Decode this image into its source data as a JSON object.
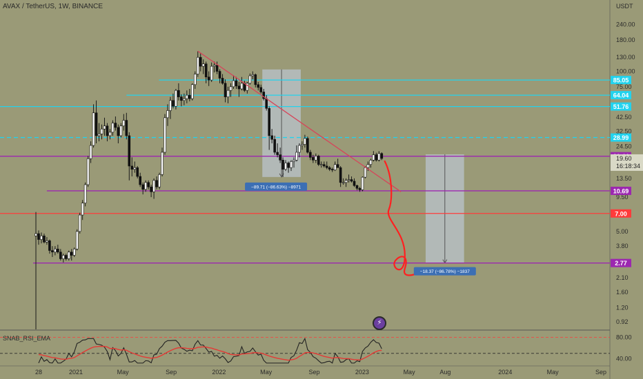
{
  "header": {
    "title": "AVAX / TetherUS, 1W, BINANCE",
    "currency": "USDT",
    "oscillator": "SNAB_RSI_EMA"
  },
  "colors": {
    "background": "#9a9a77",
    "cyan": "#22d3ee",
    "purple": "#9c27b0",
    "red": "#ff3b3b",
    "trendline": "#d6455a",
    "down_box": "#b9c3cc",
    "tag_blue": "#3c6fb4"
  },
  "chart_data": {
    "type": "candlestick",
    "title": "AVAX / TetherUS, 1W, BINANCE",
    "y_scale": "log",
    "ylim": [
      0.8,
      380
    ],
    "y_ticks": [
      240,
      180,
      130,
      100,
      75,
      42.5,
      32.5,
      24.5,
      13.5,
      9.5,
      5.0,
      3.8,
      2.1,
      1.6,
      1.2,
      0.92
    ],
    "y_tick_labels": [
      "240.00",
      "180.00",
      "130.00",
      "100.00",
      "75.00",
      "42.50",
      "32.50",
      "24.50",
      "13.50",
      "9.50",
      "5.00",
      "3.80",
      "2.10",
      "1.60",
      "1.20",
      "0.92"
    ],
    "x_ticks": [
      "28",
      "2021",
      "May",
      "Sep",
      "2022",
      "May",
      "Sep",
      "2023",
      "May",
      "Aug",
      "2024",
      "May",
      "Sep"
    ],
    "x_tick_dates": [
      "2020-09-28",
      "2021-01-01",
      "2021-05-01",
      "2021-09-01",
      "2022-01-01",
      "2022-05-01",
      "2022-09-01",
      "2023-01-01",
      "2023-05-01",
      "2023-08-01",
      "2024-01-01",
      "2024-05-01",
      "2024-09-01"
    ],
    "horizontal_levels": [
      {
        "value": 85.05,
        "label": "85.05",
        "color": "#22d3ee",
        "style": "solid"
      },
      {
        "value": 64.04,
        "label": "64.04",
        "color": "#22d3ee",
        "style": "solid"
      },
      {
        "value": 51.76,
        "label": "51.76",
        "color": "#22d3ee",
        "style": "solid"
      },
      {
        "value": 28.99,
        "label": "28.99",
        "color": "#22d3ee",
        "style": "dashed"
      },
      {
        "value": 20.44,
        "label": "20.44",
        "color": "#9c27b0",
        "style": "solid"
      },
      {
        "value": 10.69,
        "label": "10.69",
        "color": "#9c27b0",
        "style": "solid"
      },
      {
        "value": 7.0,
        "label": "7.00",
        "color": "#ff3b3b",
        "style": "solid"
      },
      {
        "value": 2.77,
        "label": "2.77",
        "color": "#9c27b0",
        "style": "solid"
      }
    ],
    "current_price": {
      "value": 19.6,
      "label": "19.60",
      "countdown": "16:18:34"
    },
    "measurements": [
      {
        "label": "−89.71 (−86.63%) −8971",
        "from": 103.6,
        "to": 13.85
      },
      {
        "label": "−18.37 (−86.78%) −1837",
        "from": 21.15,
        "to": 2.77
      }
    ],
    "trendline": {
      "start": {
        "date": "2021-11-08",
        "value": 146
      },
      "end": {
        "date": "2023-04-10",
        "value": 10.5
      }
    },
    "candles": [
      [
        "2020-09-21",
        4.6,
        7.2,
        0.8,
        4.8
      ],
      [
        "2020-09-28",
        4.8,
        5.1,
        3.9,
        4.3
      ],
      [
        "2020-10-05",
        4.3,
        4.9,
        4.0,
        4.6
      ],
      [
        "2020-10-12",
        4.6,
        4.8,
        4.0,
        4.1
      ],
      [
        "2020-10-19",
        4.1,
        4.5,
        3.9,
        4.2
      ],
      [
        "2020-10-26",
        4.2,
        4.3,
        3.3,
        3.5
      ],
      [
        "2020-11-02",
        3.5,
        3.8,
        3.1,
        3.4
      ],
      [
        "2020-11-09",
        3.4,
        3.8,
        3.2,
        3.6
      ],
      [
        "2020-11-16",
        3.6,
        3.9,
        3.3,
        3.4
      ],
      [
        "2020-11-23",
        3.4,
        3.6,
        2.9,
        3.0
      ],
      [
        "2020-11-30",
        3.0,
        3.3,
        2.8,
        3.2
      ],
      [
        "2020-12-07",
        3.2,
        3.3,
        2.9,
        3.0
      ],
      [
        "2020-12-14",
        3.0,
        3.5,
        2.9,
        3.4
      ],
      [
        "2020-12-21",
        3.4,
        3.6,
        2.9,
        3.2
      ],
      [
        "2020-12-28",
        3.2,
        3.7,
        3.1,
        3.6
      ],
      [
        "2021-01-04",
        3.6,
        5.2,
        3.5,
        5.0
      ],
      [
        "2021-01-11",
        5.0,
        7.1,
        4.8,
        6.8
      ],
      [
        "2021-01-18",
        6.8,
        9.0,
        6.2,
        8.5
      ],
      [
        "2021-01-25",
        8.5,
        12.5,
        8.0,
        12.0
      ],
      [
        "2021-02-01",
        12.0,
        20.5,
        11.5,
        19.5
      ],
      [
        "2021-02-08",
        19.5,
        27.0,
        18.0,
        25.0
      ],
      [
        "2021-02-15",
        25.0,
        54.0,
        24.0,
        46.0
      ],
      [
        "2021-02-22",
        46.0,
        58.0,
        26.0,
        30.0
      ],
      [
        "2021-03-01",
        30.0,
        38.0,
        27.0,
        31.0
      ],
      [
        "2021-03-08",
        31.0,
        37.0,
        28.0,
        34.0
      ],
      [
        "2021-03-15",
        34.0,
        42.0,
        30.0,
        36.0
      ],
      [
        "2021-03-22",
        36.0,
        38.0,
        27.0,
        30.0
      ],
      [
        "2021-03-29",
        30.0,
        34.0,
        28.0,
        32.0
      ],
      [
        "2021-04-05",
        32.0,
        40.0,
        30.0,
        38.0
      ],
      [
        "2021-04-12",
        38.0,
        43.0,
        33.0,
        35.0
      ],
      [
        "2021-04-19",
        35.0,
        37.0,
        26.0,
        30.0
      ],
      [
        "2021-04-26",
        30.0,
        38.0,
        29.0,
        36.0
      ],
      [
        "2021-05-03",
        36.0,
        45.0,
        33.0,
        40.0
      ],
      [
        "2021-05-10",
        40.0,
        46.0,
        28.0,
        30.0
      ],
      [
        "2021-05-17",
        30.0,
        32.0,
        13.0,
        17.0
      ],
      [
        "2021-05-24",
        17.0,
        20.0,
        14.0,
        16.0
      ],
      [
        "2021-05-31",
        16.0,
        18.5,
        15.0,
        16.5
      ],
      [
        "2021-06-07",
        16.5,
        17.0,
        13.5,
        14.0
      ],
      [
        "2021-06-14",
        14.0,
        15.0,
        11.5,
        12.0
      ],
      [
        "2021-06-21",
        12.0,
        12.5,
        10.0,
        11.0
      ],
      [
        "2021-06-28",
        11.0,
        13.0,
        10.5,
        12.5
      ],
      [
        "2021-07-05",
        12.5,
        13.0,
        11.0,
        11.5
      ],
      [
        "2021-07-12",
        11.5,
        12.0,
        9.5,
        10.5
      ],
      [
        "2021-07-19",
        10.5,
        13.5,
        9.2,
        13.0
      ],
      [
        "2021-07-26",
        13.0,
        14.0,
        11.0,
        11.5
      ],
      [
        "2021-08-02",
        11.5,
        15.0,
        11.0,
        14.5
      ],
      [
        "2021-08-09",
        14.5,
        24.0,
        14.0,
        22.0
      ],
      [
        "2021-08-16",
        22.0,
        45.0,
        21.0,
        42.0
      ],
      [
        "2021-08-23",
        42.0,
        54.0,
        36.0,
        48.0
      ],
      [
        "2021-08-30",
        48.0,
        62.0,
        41.0,
        58.0
      ],
      [
        "2021-09-06",
        58.0,
        66.0,
        50.0,
        52.0
      ],
      [
        "2021-09-13",
        52.0,
        72.0,
        49.0,
        70.0
      ],
      [
        "2021-09-20",
        70.0,
        80.0,
        58.0,
        62.0
      ],
      [
        "2021-09-27",
        62.0,
        65.0,
        52.0,
        58.0
      ],
      [
        "2021-10-04",
        58.0,
        66.0,
        53.0,
        60.0
      ],
      [
        "2021-10-11",
        60.0,
        70.0,
        55.0,
        64.0
      ],
      [
        "2021-10-18",
        64.0,
        72.0,
        57.0,
        60.0
      ],
      [
        "2021-10-25",
        60.0,
        80.0,
        58.0,
        78.0
      ],
      [
        "2021-11-01",
        78.0,
        100.0,
        72.0,
        95.0
      ],
      [
        "2021-11-08",
        95.0,
        146.0,
        90.0,
        130.0
      ],
      [
        "2021-11-15",
        130.0,
        140.0,
        100.0,
        110.0
      ],
      [
        "2021-11-22",
        110.0,
        125.0,
        95.0,
        115.0
      ],
      [
        "2021-11-29",
        115.0,
        120.0,
        80.0,
        90.0
      ],
      [
        "2021-12-06",
        90.0,
        100.0,
        76.0,
        85.0
      ],
      [
        "2021-12-13",
        85.0,
        118.0,
        82.0,
        110.0
      ],
      [
        "2021-12-20",
        110.0,
        120.0,
        98.0,
        112.0
      ],
      [
        "2021-12-27",
        112.0,
        120.0,
        95.0,
        100.0
      ],
      [
        "2022-01-03",
        100.0,
        104.0,
        80.0,
        88.0
      ],
      [
        "2022-01-10",
        88.0,
        95.0,
        78.0,
        80.0
      ],
      [
        "2022-01-17",
        80.0,
        86.0,
        56.0,
        62.0
      ],
      [
        "2022-01-24",
        62.0,
        75.0,
        55.0,
        70.0
      ],
      [
        "2022-01-31",
        70.0,
        80.0,
        62.0,
        75.0
      ],
      [
        "2022-02-07",
        75.0,
        93.0,
        72.0,
        84.0
      ],
      [
        "2022-02-14",
        84.0,
        90.0,
        72.0,
        76.0
      ],
      [
        "2022-02-21",
        76.0,
        82.0,
        62.0,
        72.0
      ],
      [
        "2022-02-28",
        72.0,
        90.0,
        70.0,
        80.0
      ],
      [
        "2022-03-07",
        80.0,
        84.0,
        68.0,
        70.0
      ],
      [
        "2022-03-14",
        70.0,
        82.0,
        66.0,
        80.0
      ],
      [
        "2022-03-21",
        80.0,
        96.0,
        78.0,
        92.0
      ],
      [
        "2022-03-28",
        92.0,
        100.0,
        86.0,
        94.0
      ],
      [
        "2022-04-04",
        94.0,
        96.0,
        74.0,
        78.0
      ],
      [
        "2022-04-11",
        78.0,
        82.0,
        70.0,
        74.0
      ],
      [
        "2022-04-18",
        74.0,
        78.0,
        66.0,
        68.0
      ],
      [
        "2022-04-25",
        68.0,
        72.0,
        58.0,
        60.0
      ],
      [
        "2022-05-02",
        60.0,
        64.0,
        48.0,
        50.0
      ],
      [
        "2022-05-09",
        50.0,
        52.0,
        23.0,
        30.0
      ],
      [
        "2022-05-16",
        30.0,
        34.0,
        26.0,
        28.0
      ],
      [
        "2022-05-23",
        28.0,
        30.0,
        21.0,
        22.0
      ],
      [
        "2022-05-30",
        22.0,
        26.0,
        20.0,
        21.0
      ],
      [
        "2022-06-06",
        21.0,
        24.0,
        18.0,
        19.0
      ],
      [
        "2022-06-13",
        19.0,
        20.0,
        13.85,
        16.0
      ],
      [
        "2022-06-20",
        16.0,
        19.0,
        15.5,
        18.0
      ],
      [
        "2022-06-27",
        18.0,
        18.5,
        15.0,
        16.5
      ],
      [
        "2022-07-04",
        16.5,
        19.0,
        15.5,
        18.5
      ],
      [
        "2022-07-11",
        18.5,
        20.0,
        16.5,
        19.0
      ],
      [
        "2022-07-18",
        19.0,
        25.0,
        18.5,
        22.0
      ],
      [
        "2022-07-25",
        22.0,
        26.0,
        20.0,
        25.0
      ],
      [
        "2022-08-01",
        25.0,
        27.0,
        23.0,
        25.5
      ],
      [
        "2022-08-08",
        25.5,
        30.5,
        24.0,
        28.5
      ],
      [
        "2022-08-15",
        28.5,
        29.5,
        21.5,
        22.0
      ],
      [
        "2022-08-22",
        22.0,
        23.0,
        19.0,
        20.0
      ],
      [
        "2022-08-29",
        20.0,
        21.0,
        18.0,
        19.0
      ],
      [
        "2022-09-05",
        19.0,
        21.5,
        18.0,
        20.5
      ],
      [
        "2022-09-12",
        20.5,
        21.0,
        17.0,
        17.5
      ],
      [
        "2022-09-19",
        17.5,
        18.5,
        16.5,
        17.5
      ],
      [
        "2022-09-26",
        17.5,
        18.5,
        16.5,
        17.0
      ],
      [
        "2022-10-03",
        17.0,
        18.5,
        16.0,
        16.5
      ],
      [
        "2022-10-10",
        16.5,
        17.0,
        15.5,
        16.0
      ],
      [
        "2022-10-17",
        16.0,
        16.5,
        15.2,
        15.8
      ],
      [
        "2022-10-24",
        15.8,
        18.5,
        15.5,
        17.5
      ],
      [
        "2022-10-31",
        17.5,
        19.5,
        16.5,
        16.5
      ],
      [
        "2022-11-07",
        16.5,
        17.0,
        11.5,
        12.5
      ],
      [
        "2022-11-14",
        12.5,
        13.5,
        12.0,
        12.5
      ],
      [
        "2022-11-21",
        12.5,
        13.5,
        11.5,
        13.0
      ],
      [
        "2022-11-28",
        13.0,
        14.5,
        12.5,
        13.2
      ],
      [
        "2022-12-05",
        13.2,
        14.0,
        12.5,
        12.8
      ],
      [
        "2022-12-12",
        12.8,
        13.5,
        11.5,
        11.8
      ],
      [
        "2022-12-19",
        11.8,
        12.0,
        10.8,
        11.2
      ],
      [
        "2022-12-26",
        11.2,
        11.5,
        10.5,
        10.9
      ],
      [
        "2023-01-02",
        10.9,
        14.0,
        10.6,
        13.8
      ],
      [
        "2023-01-09",
        13.8,
        17.0,
        13.5,
        16.5
      ],
      [
        "2023-01-16",
        16.5,
        18.5,
        15.5,
        17.5
      ],
      [
        "2023-01-23",
        17.5,
        19.5,
        16.5,
        19.0
      ],
      [
        "2023-01-30",
        19.0,
        22.5,
        18.5,
        21.0
      ],
      [
        "2023-02-06",
        21.0,
        21.8,
        18.5,
        19.0
      ],
      [
        "2023-02-13",
        19.0,
        22.5,
        18.5,
        21.5
      ],
      [
        "2023-02-20",
        21.5,
        22.0,
        19.0,
        19.6
      ]
    ],
    "oscillator": {
      "name": "SNAB_RSI_EMA",
      "levels": [
        {
          "value": 80,
          "label": "80.00",
          "color": "#ff3b3b",
          "style": "dashed"
        },
        {
          "value": 50,
          "label": "",
          "color": "#2a2a2a",
          "style": "dashed"
        },
        {
          "value": 40,
          "label": "40.00"
        }
      ],
      "ylim": [
        28,
        92
      ]
    }
  }
}
